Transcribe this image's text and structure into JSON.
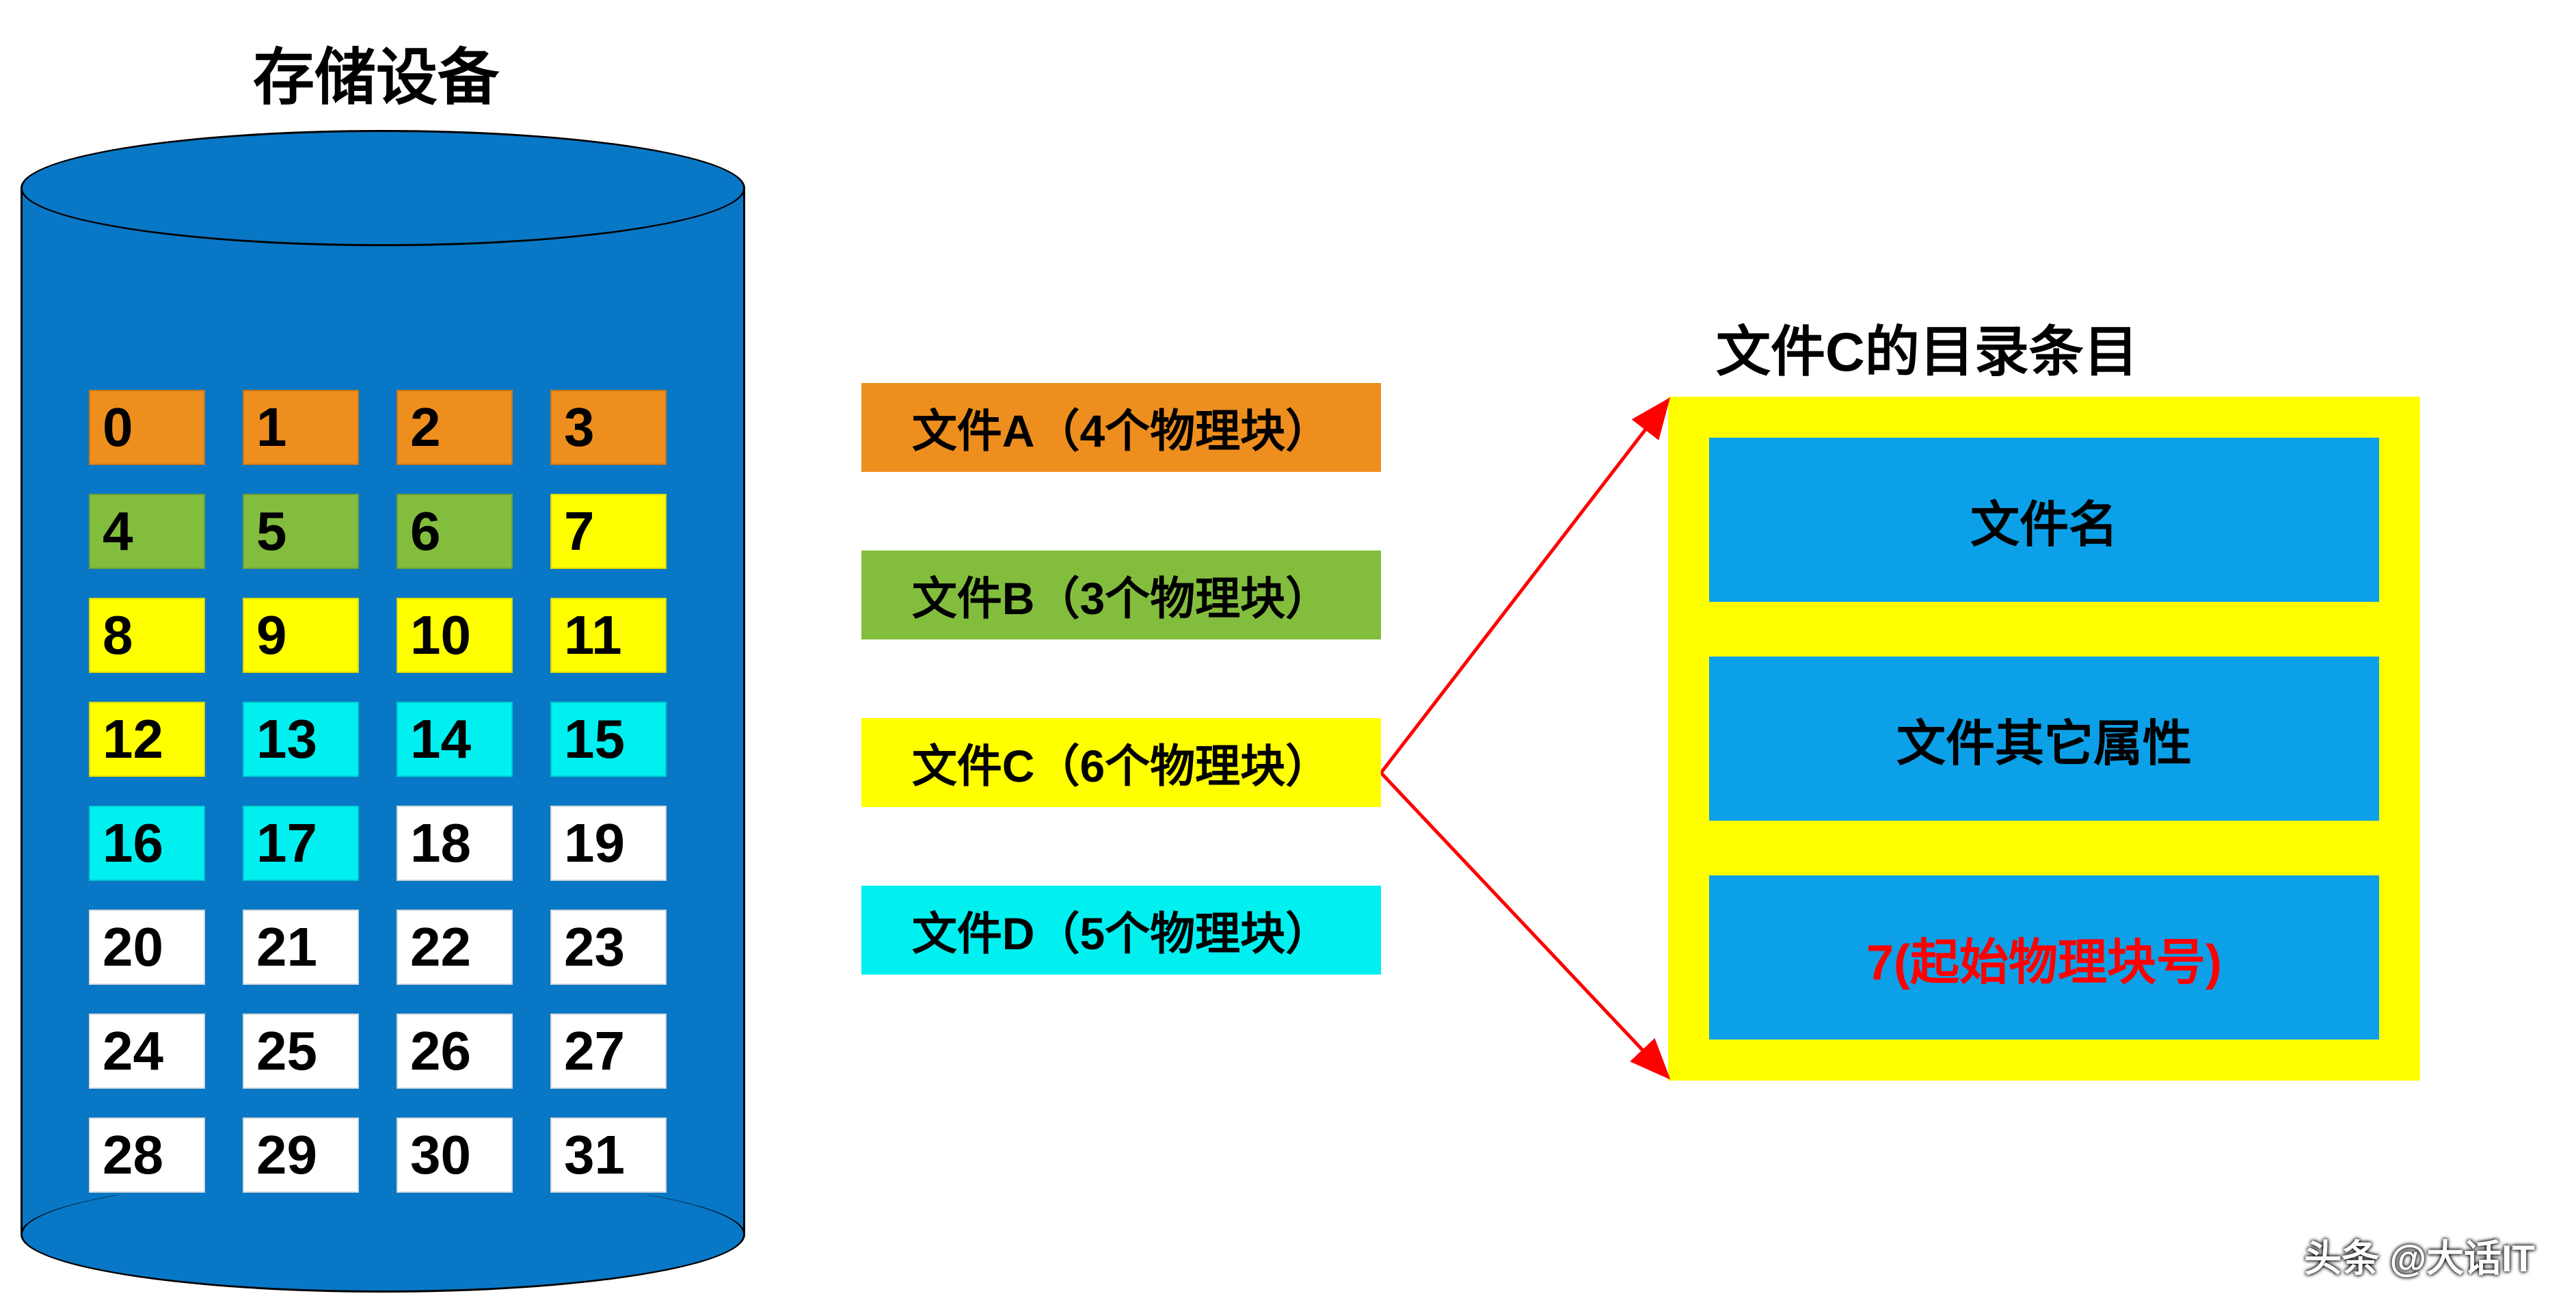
{
  "storage_title": "存储设备",
  "colors": {
    "orange": "#ed8e1e",
    "green": "#83bd3e",
    "yellow": "#ffff00",
    "cyan": "#00f0f0",
    "white": "#ffffff",
    "cylinder": "#0877c5",
    "dir_entry_bg": "#0ca0e8",
    "red": "#ff0000",
    "black": "#000000",
    "arrow_red": "#ff0000"
  },
  "blocks": [
    {
      "n": "0",
      "c": "orange"
    },
    {
      "n": "1",
      "c": "orange"
    },
    {
      "n": "2",
      "c": "orange"
    },
    {
      "n": "3",
      "c": "orange"
    },
    {
      "n": "4",
      "c": "green"
    },
    {
      "n": "5",
      "c": "green"
    },
    {
      "n": "6",
      "c": "green"
    },
    {
      "n": "7",
      "c": "yellow"
    },
    {
      "n": "8",
      "c": "yellow"
    },
    {
      "n": "9",
      "c": "yellow"
    },
    {
      "n": "10",
      "c": "yellow"
    },
    {
      "n": "11",
      "c": "yellow"
    },
    {
      "n": "12",
      "c": "yellow"
    },
    {
      "n": "13",
      "c": "cyan"
    },
    {
      "n": "14",
      "c": "cyan"
    },
    {
      "n": "15",
      "c": "cyan"
    },
    {
      "n": "16",
      "c": "cyan"
    },
    {
      "n": "17",
      "c": "cyan"
    },
    {
      "n": "18",
      "c": "white"
    },
    {
      "n": "19",
      "c": "white"
    },
    {
      "n": "20",
      "c": "white"
    },
    {
      "n": "21",
      "c": "white"
    },
    {
      "n": "22",
      "c": "white"
    },
    {
      "n": "23",
      "c": "white"
    },
    {
      "n": "24",
      "c": "white"
    },
    {
      "n": "25",
      "c": "white"
    },
    {
      "n": "26",
      "c": "white"
    },
    {
      "n": "27",
      "c": "white"
    },
    {
      "n": "28",
      "c": "white"
    },
    {
      "n": "29",
      "c": "white"
    },
    {
      "n": "30",
      "c": "white"
    },
    {
      "n": "31",
      "c": "white"
    }
  ],
  "files": [
    {
      "label": "文件A（4个物理块）",
      "c": "orange"
    },
    {
      "label": "文件B（3个物理块）",
      "c": "green"
    },
    {
      "label": "文件C（6个物理块）",
      "c": "yellow"
    },
    {
      "label": "文件D（5个物理块）",
      "c": "cyan"
    }
  ],
  "directory": {
    "title": "文件C的目录条目",
    "entries": [
      {
        "label": "文件名",
        "color": "black"
      },
      {
        "label": "文件其它属性",
        "color": "black"
      },
      {
        "label": "7(起始物理块号)",
        "color": "red"
      }
    ]
  },
  "watermark": "头条 @大话IT"
}
